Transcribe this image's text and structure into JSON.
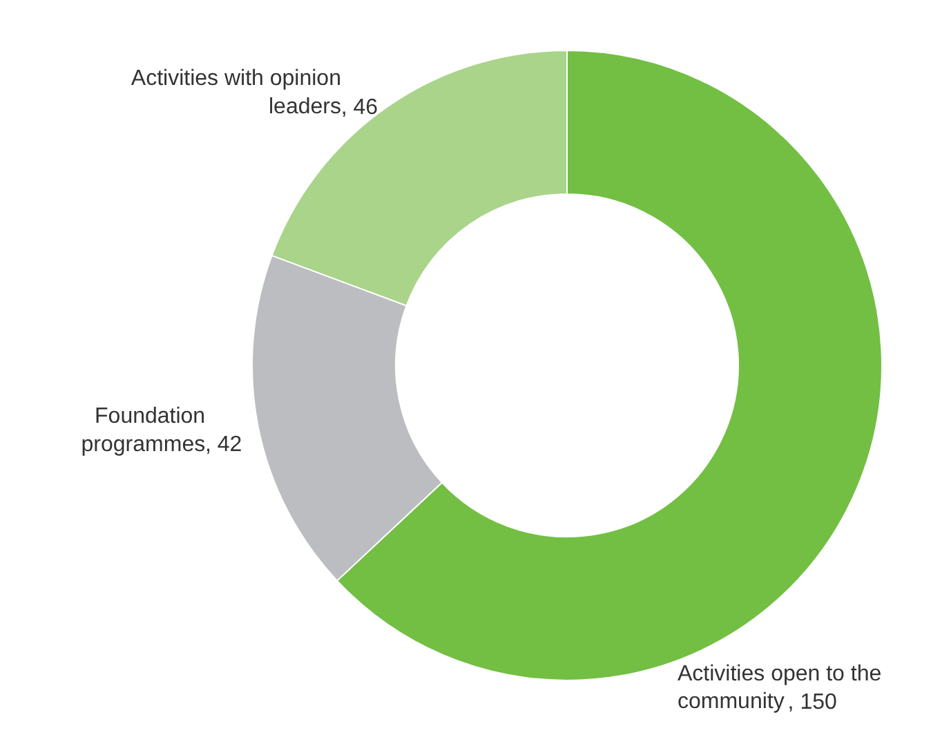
{
  "chart_data": {
    "type": "donut",
    "categories": [
      "Activities open to the community",
      "Foundation programmes",
      "Activities with opinion leaders"
    ],
    "values": [
      150,
      42,
      46
    ],
    "value_labels": [
      ", 150",
      ", 42",
      ", 46"
    ],
    "colors": [
      "#72bf44",
      "#bcbdc0",
      "#a9d48a"
    ]
  }
}
